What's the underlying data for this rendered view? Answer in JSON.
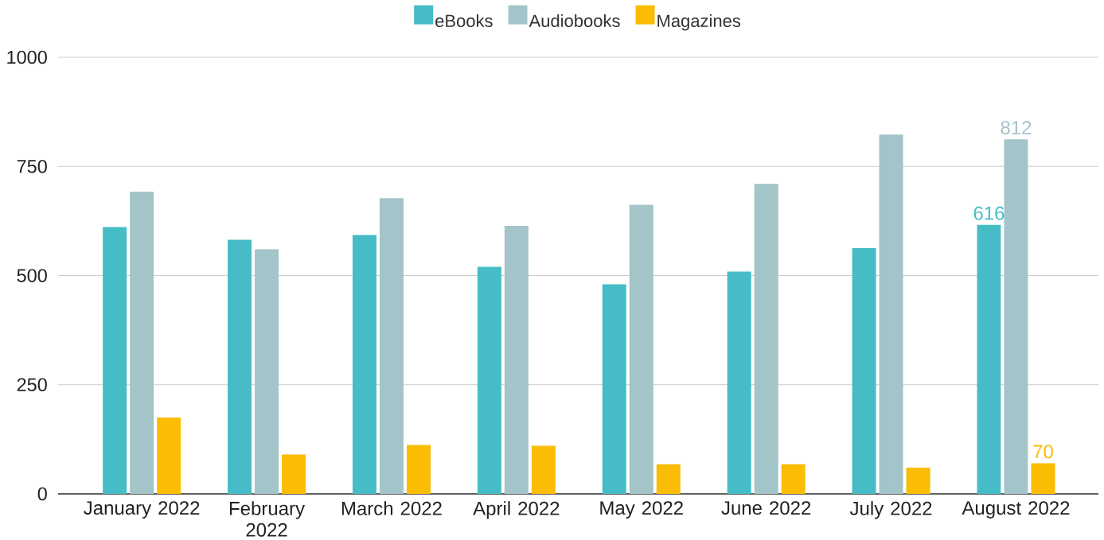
{
  "chart_data": {
    "type": "bar",
    "categories": [
      "January 2022",
      "February 2022",
      "March 2022",
      "April 2022",
      "May 2022",
      "June 2022",
      "July 2022",
      "August 2022"
    ],
    "series": [
      {
        "name": "eBooks",
        "color": "#46bdc6",
        "values": [
          611,
          582,
          593,
          520,
          480,
          509,
          563,
          616
        ],
        "value_labels": [
          null,
          null,
          null,
          null,
          null,
          null,
          null,
          "616"
        ]
      },
      {
        "name": "Audiobooks",
        "color": "#a3c4c9",
        "values": [
          692,
          560,
          677,
          614,
          662,
          710,
          823,
          812
        ],
        "value_labels": [
          null,
          null,
          null,
          null,
          null,
          null,
          null,
          "812"
        ]
      },
      {
        "name": "Magazines",
        "color": "#fbbc04",
        "values": [
          175,
          90,
          112,
          110,
          68,
          68,
          60,
          70
        ],
        "value_labels": [
          null,
          null,
          null,
          null,
          null,
          null,
          null,
          "70"
        ]
      }
    ],
    "ylim": [
      0,
      1000
    ],
    "yticks": [
      0,
      250,
      500,
      750,
      1000
    ],
    "grid": "y",
    "legend": "top"
  }
}
